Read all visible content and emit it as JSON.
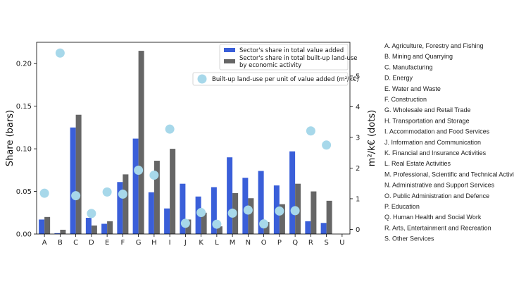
{
  "chart_data": {
    "type": "bar",
    "categories": [
      "A",
      "B",
      "C",
      "D",
      "E",
      "F",
      "G",
      "H",
      "I",
      "J",
      "K",
      "L",
      "M",
      "N",
      "O",
      "P",
      "Q",
      "R",
      "S",
      "U"
    ],
    "series": [
      {
        "name": "Sector's share in total value added",
        "axis": "left",
        "color": "#3a5fd9",
        "values": [
          0.017,
          0.001,
          0.125,
          0.019,
          0.012,
          0.061,
          0.112,
          0.049,
          0.03,
          0.059,
          0.044,
          0.055,
          0.09,
          0.066,
          0.074,
          0.057,
          0.097,
          0.015,
          0.013,
          0
        ]
      },
      {
        "name": "Sector's share in total built-up land-use by economic activity",
        "axis": "left",
        "color": "#666666",
        "values": [
          0.02,
          0.005,
          0.14,
          0.01,
          0.015,
          0.07,
          0.215,
          0.086,
          0.1,
          0.017,
          0.025,
          0.009,
          0.048,
          0.042,
          0.014,
          0.035,
          0.059,
          0.05,
          0.039,
          0
        ]
      },
      {
        "name": "Built-up land-use per unit of value added (m²/k€)",
        "axis": "right",
        "type": "scatter",
        "color": "#a7d8ea",
        "values": [
          1.18,
          5.75,
          1.1,
          0.52,
          1.22,
          1.15,
          1.93,
          1.77,
          3.27,
          0.2,
          0.55,
          0.17,
          0.53,
          0.63,
          0.18,
          0.6,
          0.61,
          3.21,
          2.75,
          null
        ]
      }
    ],
    "ylabel": "Share (bars)",
    "y2label": "m²/k€ (dots)",
    "ylim": [
      0,
      0.225
    ],
    "y2lim": [
      -0.15,
      6.1
    ],
    "yticks": [
      "0.00",
      "0.05",
      "0.10",
      "0.15",
      "0.20"
    ],
    "y2ticks": [
      "0",
      "1",
      "2",
      "3",
      "4",
      "5"
    ],
    "grid": false,
    "legend_position": "top-right",
    "sector_legend": [
      "A. Agriculture, Forestry and Fishing",
      "B. Mining and Quarrying",
      "C. Manufacturing",
      "D. Energy",
      "E. Water and Waste",
      "F. Construction",
      "G. Wholesale and Retail Trade",
      "H. Transportation and Storage",
      "I. Accommodation and Food Services",
      "J. Information and Communication",
      "K. Financial and Insurance Activities",
      "L. Real Estate Activities",
      "M. Professional, Scientific and Technical Activities",
      "N. Administrative and Support Services",
      "O. Public Administration and Defence",
      "P. Education",
      "Q. Human Health and Social Work",
      "R. Arts, Entertainment and Recreation",
      "S. Other Services"
    ]
  }
}
